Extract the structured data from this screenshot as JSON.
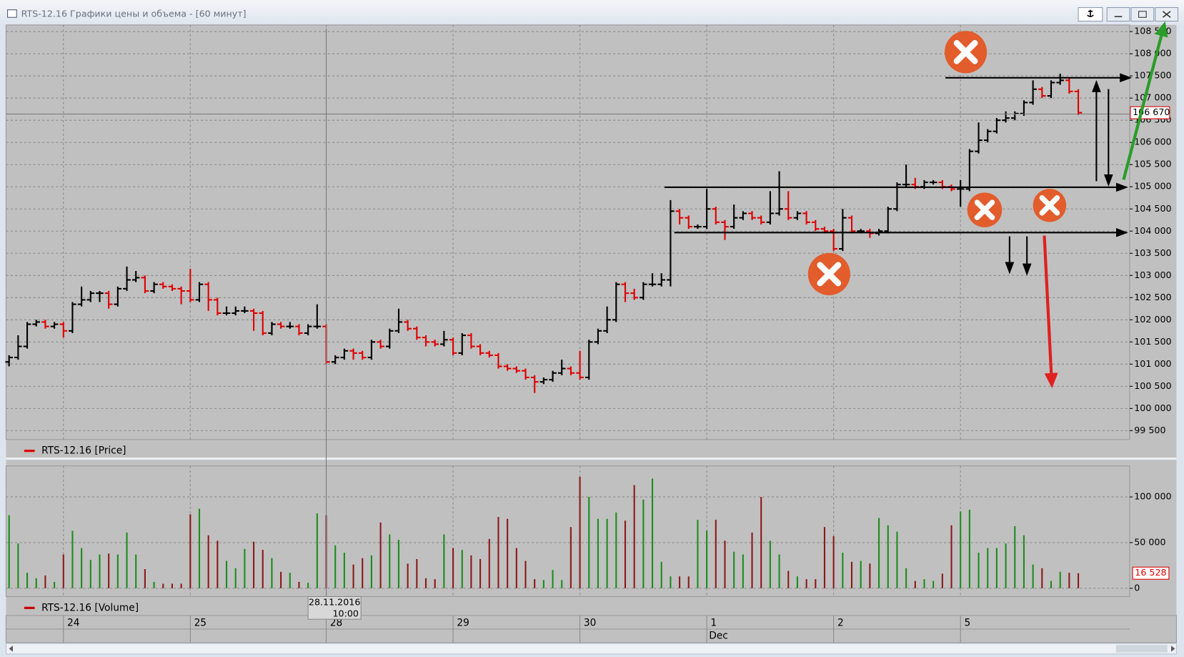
{
  "window_title": "RTS-12.16 Графики цены и объема - [60 минут]",
  "chart_data": {
    "type": "ohlc",
    "categories": [
      null,
      null,
      null,
      null,
      null,
      null,
      "24",
      null,
      null,
      null,
      null,
      null,
      null,
      null,
      null,
      null,
      null,
      null,
      null,
      null,
      "25",
      null,
      null,
      null,
      null,
      null,
      null,
      null,
      null,
      null,
      null,
      null,
      null,
      null,
      null,
      "28",
      null,
      null,
      null,
      null,
      null,
      null,
      null,
      null,
      null,
      null,
      null,
      null,
      null,
      "29",
      null,
      null,
      null,
      null,
      null,
      null,
      null,
      null,
      null,
      null,
      null,
      null,
      null,
      "30",
      null,
      null,
      null,
      null,
      null,
      null,
      null,
      null,
      null,
      null,
      null,
      null,
      null,
      "1",
      null,
      null,
      null,
      null,
      null,
      null,
      null,
      null,
      null,
      null,
      null,
      null,
      null,
      "2",
      null,
      null,
      null,
      null,
      null,
      null,
      null,
      null,
      null,
      null,
      null,
      null,
      null,
      "5",
      null,
      null,
      null,
      null,
      null,
      null,
      null,
      null,
      null,
      null,
      null,
      null,
      null
    ],
    "month_label": "Dec",
    "price": {
      "name": "RTS-12.16 [Price]",
      "legend_color": "#e00000",
      "up_color": "#000000",
      "down_color": "#e00000",
      "open": [
        101050,
        101150,
        101400,
        101900,
        101950,
        101850,
        101900,
        101750,
        102350,
        102450,
        102600,
        102600,
        102350,
        102700,
        102900,
        102950,
        102650,
        102800,
        102750,
        102700,
        102650,
        102450,
        102800,
        102450,
        102150,
        102150,
        102200,
        102200,
        102150,
        101700,
        101900,
        101850,
        101850,
        101700,
        101850,
        101850,
        101050,
        101150,
        101300,
        101250,
        101150,
        101500,
        101400,
        101750,
        101950,
        101800,
        101600,
        101500,
        101450,
        101550,
        101250,
        101650,
        101400,
        101250,
        101200,
        100950,
        100900,
        100850,
        100700,
        100600,
        100650,
        100800,
        100900,
        100800,
        100700,
        101500,
        101750,
        102000,
        102800,
        102600,
        102500,
        102800,
        102800,
        102900,
        104450,
        104300,
        104100,
        104100,
        104500,
        104200,
        104100,
        104300,
        104400,
        104300,
        104200,
        104400,
        104500,
        104300,
        104400,
        104200,
        104050,
        104000,
        103600,
        104300,
        104000,
        104000,
        103950,
        104000,
        104500,
        105050,
        105050,
        105000,
        105100,
        105100,
        105000,
        104950,
        104950,
        105800,
        106050,
        106250,
        106500,
        106550,
        106650,
        106900,
        107200,
        107050,
        107350,
        107400,
        107150
      ],
      "high": [
        101200,
        101650,
        101950,
        102000,
        102000,
        101950,
        101950,
        102400,
        102750,
        102650,
        102650,
        102650,
        102750,
        103200,
        103100,
        103000,
        102850,
        102850,
        102800,
        102750,
        103150,
        102850,
        102850,
        102500,
        102300,
        102300,
        102300,
        102250,
        102200,
        101950,
        101950,
        101950,
        101900,
        101900,
        102350,
        101900,
        101200,
        101350,
        101350,
        101300,
        101550,
        101550,
        101800,
        102250,
        102000,
        101850,
        101650,
        101550,
        101750,
        101600,
        101700,
        101700,
        101450,
        101300,
        101250,
        101000,
        100950,
        100900,
        100750,
        100700,
        100850,
        101100,
        100950,
        101300,
        101550,
        101800,
        102300,
        102850,
        102850,
        102700,
        102850,
        103050,
        103050,
        104700,
        104500,
        104350,
        104150,
        104950,
        104550,
        104250,
        104600,
        104450,
        104450,
        104350,
        104900,
        105350,
        104900,
        104450,
        104450,
        104250,
        104100,
        104050,
        104500,
        104350,
        104050,
        104050,
        104050,
        104550,
        105100,
        105500,
        105200,
        105150,
        105150,
        105150,
        105050,
        105150,
        105850,
        106450,
        106300,
        106550,
        106700,
        106700,
        106950,
        107400,
        107250,
        107400,
        107550,
        107450,
        107200
      ],
      "low": [
        100950,
        101100,
        101350,
        101850,
        101800,
        101800,
        101600,
        101700,
        102300,
        102400,
        102400,
        102250,
        102300,
        102650,
        102850,
        102600,
        102600,
        102700,
        102650,
        102350,
        102400,
        102400,
        102200,
        102100,
        102100,
        102100,
        102150,
        101750,
        101650,
        101650,
        101800,
        101800,
        101650,
        101650,
        101800,
        101000,
        101000,
        101100,
        101100,
        101100,
        101100,
        101350,
        101350,
        101700,
        101750,
        101550,
        101400,
        101400,
        101400,
        101200,
        101200,
        101350,
        101200,
        101150,
        100900,
        100850,
        100800,
        100650,
        100350,
        100550,
        100600,
        100750,
        100750,
        100650,
        100650,
        101450,
        101700,
        101950,
        102400,
        102450,
        102450,
        102750,
        102750,
        102750,
        104150,
        104050,
        104050,
        104050,
        104150,
        103800,
        104050,
        104250,
        104250,
        104150,
        104150,
        104350,
        104250,
        104250,
        104150,
        104000,
        103950,
        103550,
        103550,
        103950,
        103950,
        103850,
        103900,
        103950,
        104450,
        105000,
        104950,
        104950,
        105050,
        104950,
        104900,
        104550,
        104900,
        105750,
        106000,
        106200,
        106450,
        106500,
        106600,
        106850,
        107000,
        107000,
        107300,
        107100,
        106620
      ],
      "close": [
        101150,
        101400,
        101900,
        101950,
        101850,
        101900,
        101750,
        102350,
        102450,
        102600,
        102600,
        102350,
        102700,
        102900,
        102950,
        102650,
        102800,
        102750,
        102700,
        102650,
        102450,
        102800,
        102450,
        102150,
        102150,
        102200,
        102200,
        102150,
        101700,
        101900,
        101850,
        101850,
        101700,
        101850,
        101850,
        101050,
        101150,
        101300,
        101250,
        101150,
        101500,
        101400,
        101750,
        101950,
        101800,
        101600,
        101500,
        101450,
        101550,
        101250,
        101650,
        101400,
        101250,
        101200,
        100950,
        100900,
        100850,
        100700,
        100600,
        100650,
        100800,
        100900,
        100800,
        100700,
        101500,
        101750,
        102000,
        102800,
        102600,
        102500,
        102800,
        102800,
        102900,
        104450,
        104300,
        104100,
        104100,
        104500,
        104200,
        104100,
        104300,
        104400,
        104300,
        104200,
        104400,
        104500,
        104300,
        104400,
        104200,
        104050,
        104000,
        103600,
        104300,
        104000,
        104000,
        103950,
        104000,
        104500,
        105050,
        105050,
        105000,
        105100,
        105100,
        105000,
        104950,
        104950,
        105800,
        106050,
        106250,
        106500,
        106550,
        106650,
        106900,
        107200,
        107050,
        107350,
        107400,
        107150,
        106670
      ]
    },
    "last_price": {
      "value": 106670,
      "label": "106 670"
    },
    "ylim": [
      99300,
      108650
    ],
    "yticks": [
      {
        "value": 99500,
        "label": "99 500"
      },
      {
        "value": 100000,
        "label": "100 000"
      },
      {
        "value": 100500,
        "label": "100 500"
      },
      {
        "value": 101000,
        "label": "101 000"
      },
      {
        "value": 101500,
        "label": "101 500"
      },
      {
        "value": 102000,
        "label": "102 000"
      },
      {
        "value": 102500,
        "label": "102 500"
      },
      {
        "value": 103000,
        "label": "103 000"
      },
      {
        "value": 103500,
        "label": "103 500"
      },
      {
        "value": 104000,
        "label": "104 000"
      },
      {
        "value": 104500,
        "label": "104 500"
      },
      {
        "value": 105000,
        "label": "105 000"
      },
      {
        "value": 105500,
        "label": "105 500"
      },
      {
        "value": 106000,
        "label": "106 000"
      },
      {
        "value": 106500,
        "label": "106 500"
      },
      {
        "value": 107000,
        "label": "107 000"
      },
      {
        "value": 107500,
        "label": "107 500"
      },
      {
        "value": 108000,
        "label": "108 000"
      },
      {
        "value": 108500,
        "label": "108 500"
      }
    ],
    "volume": {
      "name": "RTS-12.16 [Volume]",
      "legend_color": "#cc0000",
      "up_color": "#1e8c1e",
      "down_color": "#8b1a1a",
      "values": [
        80000,
        49000,
        17000,
        11000,
        14000,
        7000,
        37000,
        63000,
        44000,
        31000,
        37000,
        38000,
        37000,
        61000,
        37000,
        21000,
        7000,
        5000,
        5000,
        5000,
        81000,
        87000,
        58000,
        52000,
        30000,
        22000,
        43000,
        51000,
        42000,
        33000,
        18000,
        17000,
        7000,
        6000,
        82000,
        80000,
        47000,
        39000,
        26000,
        33000,
        36000,
        72000,
        59000,
        53000,
        27000,
        32000,
        11000,
        10000,
        59000,
        44000,
        42000,
        36000,
        32000,
        54000,
        78000,
        76000,
        44000,
        30000,
        10000,
        9000,
        20000,
        9000,
        67000,
        122000,
        100000,
        76000,
        76000,
        83000,
        74000,
        113000,
        97000,
        120000,
        29000,
        13000,
        13000,
        13000,
        75000,
        63000,
        75000,
        52000,
        40000,
        37000,
        61000,
        100000,
        52000,
        37000,
        19000,
        13000,
        10000,
        10000,
        67000,
        57000,
        39000,
        29000,
        30000,
        27000,
        77000,
        69000,
        62000,
        22000,
        8000,
        10000,
        8000,
        16000,
        69000,
        84000,
        86000,
        39000,
        44000,
        44000,
        49000,
        68000,
        58000,
        26000,
        22000,
        8000,
        18000,
        17000,
        16528
      ]
    },
    "last_volume": {
      "value": 16528,
      "label": "16 528"
    },
    "y2lim": [
      -9100,
      133900
    ],
    "y2ticks": [
      0,
      {
        "value": 50000,
        "label": "50 000"
      },
      {
        "value": 100000,
        "label": "100 000"
      }
    ],
    "grid": true,
    "crosshair": {
      "date": "28.11.2016",
      "time": "10:00"
    }
  }
}
